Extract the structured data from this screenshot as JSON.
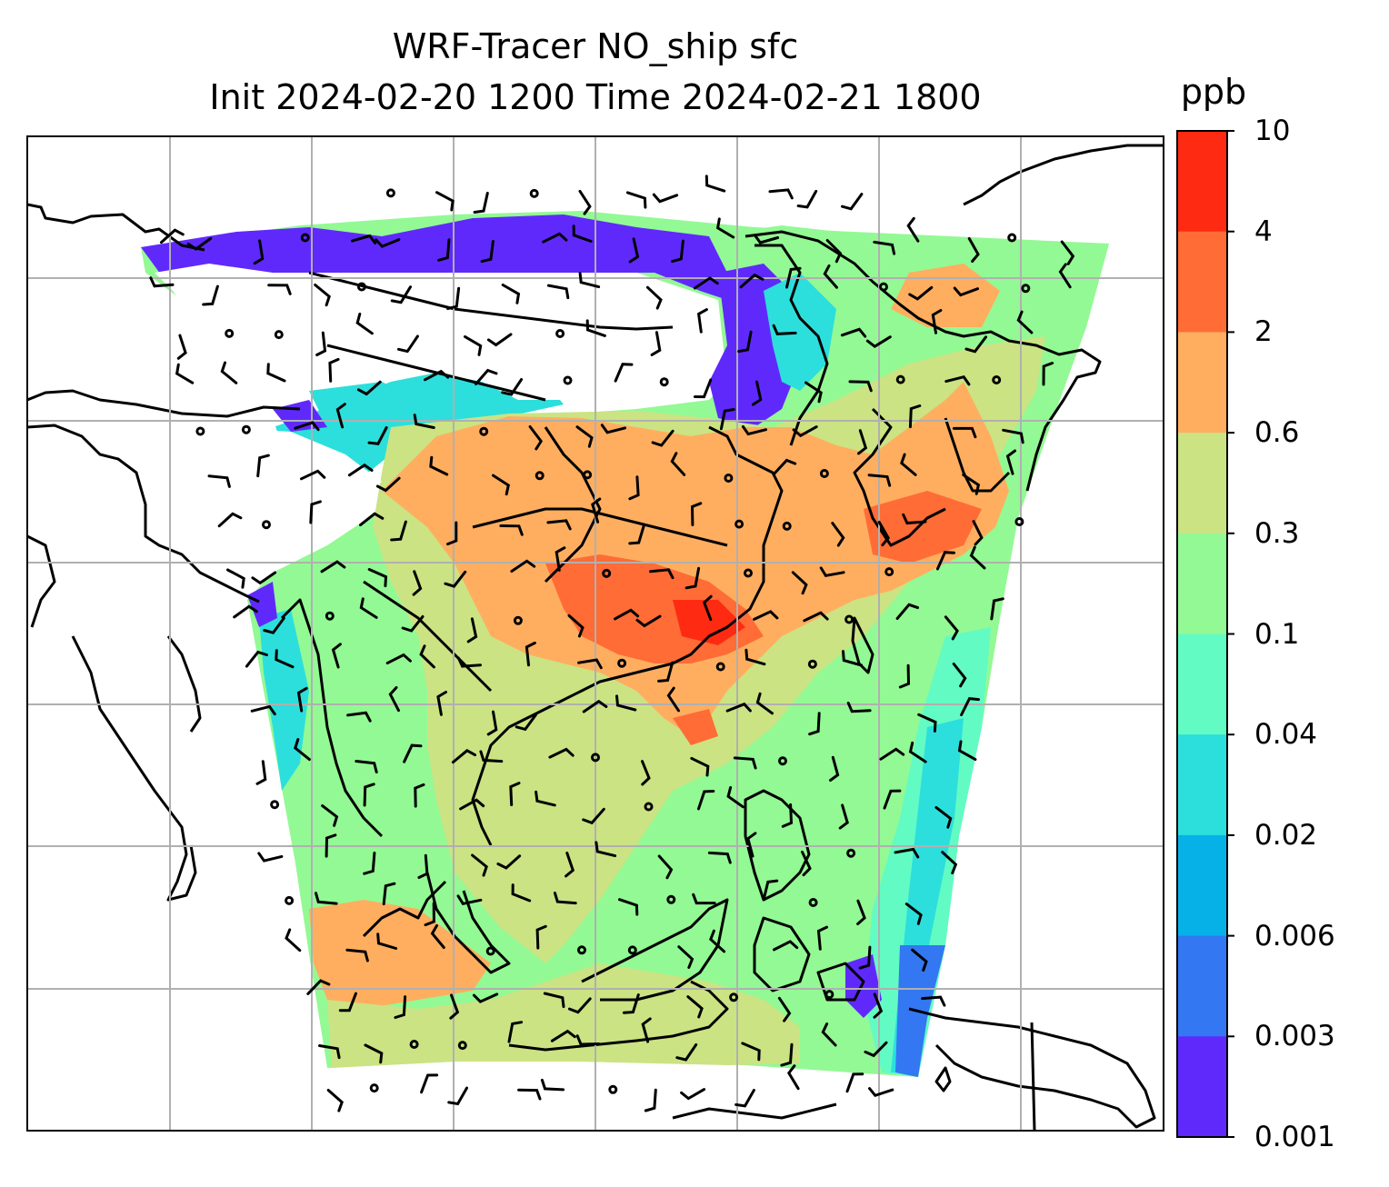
{
  "title": {
    "line1": "WRF-Tracer NO_ship sfc",
    "line2": "Init 2024-02-20 1200 Time 2024-02-21 1800"
  },
  "colorbar": {
    "unit": "ppb",
    "tick_labels": [
      "10",
      "4",
      "2",
      "0.6",
      "0.3",
      "0.1",
      "0.04",
      "0.02",
      "0.006",
      "0.003",
      "0.001"
    ],
    "colors": [
      "#ff2a12",
      "#ff6c36",
      "#ffae60",
      "#cbe383",
      "#93f994",
      "#62fbc3",
      "#2cdfdc",
      "#06b1e8",
      "#3377f2",
      "#6029fc"
    ]
  },
  "map": {
    "field": "NO_ship surface concentration",
    "wind_barbs": true,
    "coastlines": true,
    "gridlines": true
  }
}
